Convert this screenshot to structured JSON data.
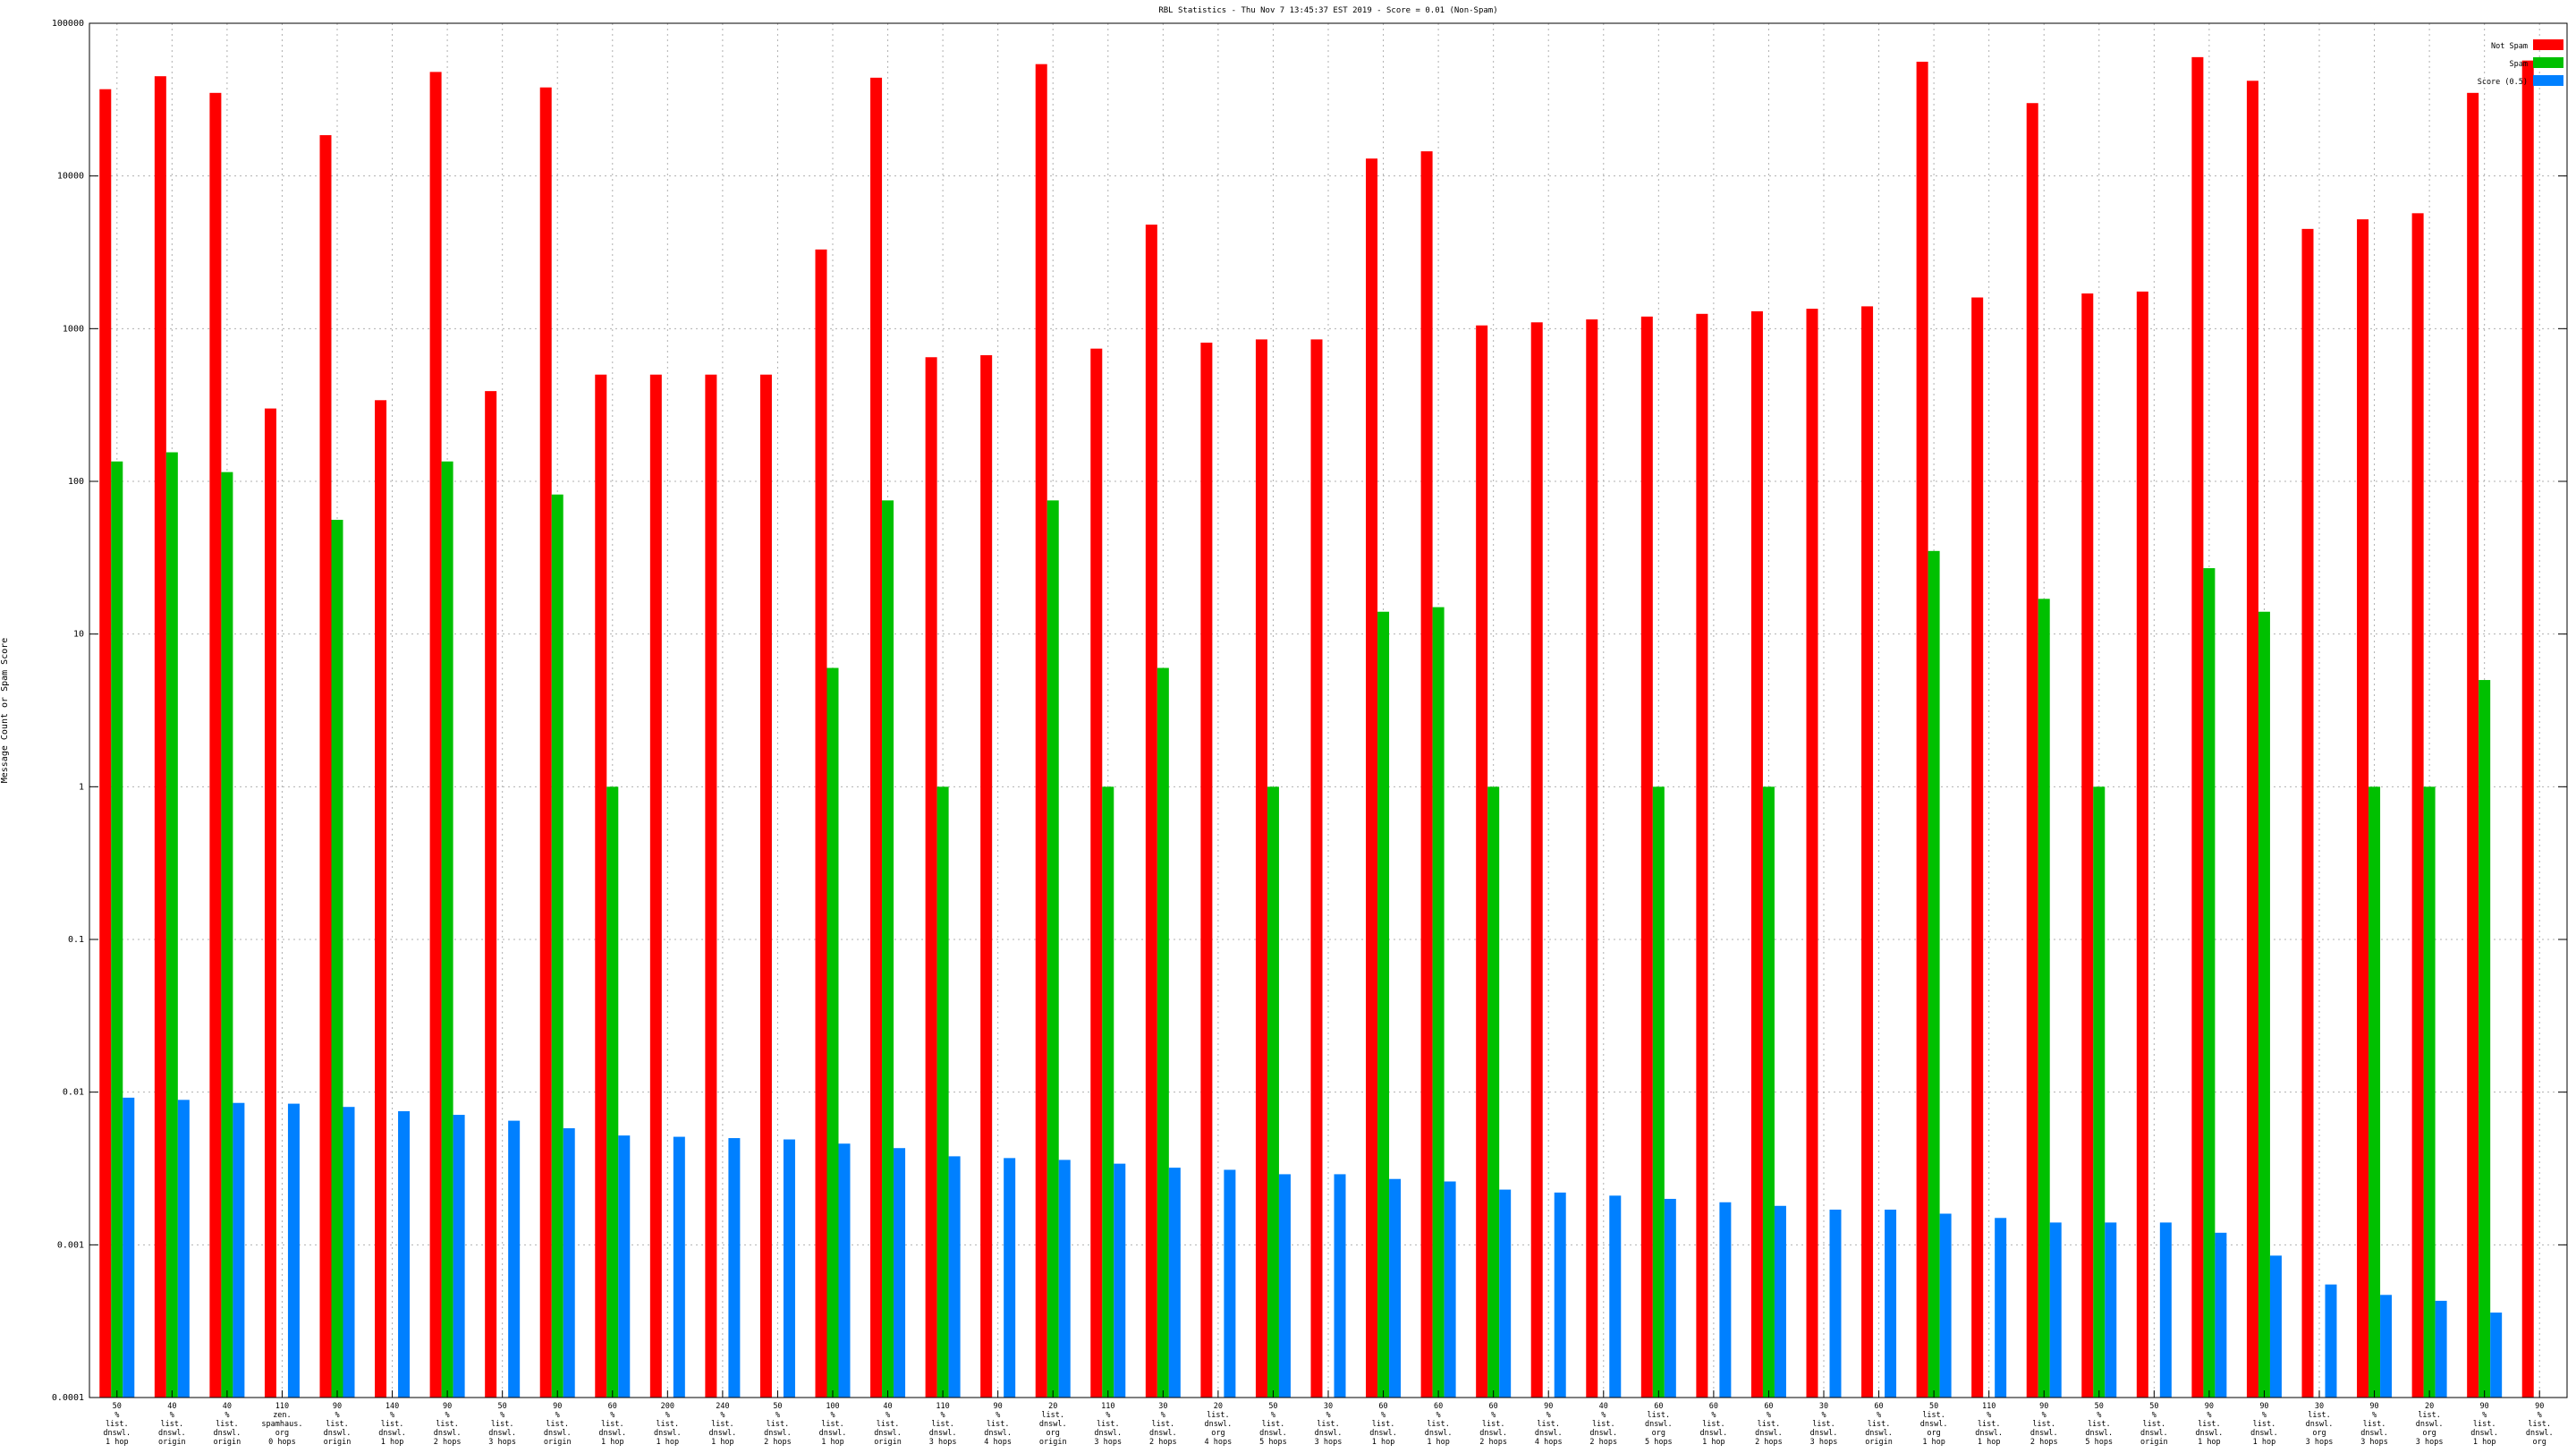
{
  "chart_data": {
    "type": "bar",
    "title": "RBL Statistics - Thu Nov  7 13:45:37 EST 2019 - Score = 0.01 (Non-Spam)",
    "ylabel": "Message Count or Spam Score",
    "xlabel": "",
    "yscale": "log",
    "ylim": [
      0.0001,
      100000
    ],
    "y_ticks": [
      "0.0001",
      "0.001",
      "0.01",
      "0.1",
      "1",
      "10",
      "100",
      "1000",
      "10000",
      "100000"
    ],
    "grid": true,
    "legend_position": "top-right",
    "categories": [
      [
        "50",
        "%",
        "list.",
        "dnswl.",
        "1 hop"
      ],
      [
        "40",
        "%",
        "list.",
        "dnswl.",
        "origin"
      ],
      [
        "40",
        "%",
        "list.",
        "dnswl.",
        "origin"
      ],
      [
        "110",
        "zen.",
        "spamhaus.",
        "org",
        "0 hops"
      ],
      [
        "90",
        "%",
        "list.",
        "dnswl.",
        "origin"
      ],
      [
        "140",
        "%",
        "list.",
        "dnswl.",
        "1 hop"
      ],
      [
        "90",
        "%",
        "list.",
        "dnswl.",
        "2 hops"
      ],
      [
        "50",
        "%",
        "list.",
        "dnswl.",
        "3 hops"
      ],
      [
        "90",
        "%",
        "list.",
        "dnswl.",
        "origin"
      ],
      [
        "60",
        "%",
        "list.",
        "dnswl.",
        "1 hop"
      ],
      [
        "200",
        "%",
        "list.",
        "dnswl.",
        "1 hop"
      ],
      [
        "240",
        "%",
        "list.",
        "dnswl.",
        "1 hop"
      ],
      [
        "50",
        "%",
        "list.",
        "dnswl.",
        "2 hops"
      ],
      [
        "100",
        "%",
        "list.",
        "dnswl.",
        "1 hop"
      ],
      [
        "40",
        "%",
        "list.",
        "dnswl.",
        "origin"
      ],
      [
        "110",
        "%",
        "list.",
        "dnswl.",
        "3 hops"
      ],
      [
        "90",
        "%",
        "list.",
        "dnswl.",
        "4 hops"
      ],
      [
        "20",
        "list.",
        "dnswl.",
        "org",
        "origin"
      ],
      [
        "110",
        "%",
        "list.",
        "dnswl.",
        "3 hops"
      ],
      [
        "30",
        "%",
        "list.",
        "dnswl.",
        "2 hops"
      ],
      [
        "20",
        "list.",
        "dnswl.",
        "org",
        "4 hops"
      ],
      [
        "50",
        "%",
        "list.",
        "dnswl.",
        "5 hops"
      ],
      [
        "30",
        "%",
        "list.",
        "dnswl.",
        "3 hops"
      ],
      [
        "60",
        "%",
        "list.",
        "dnswl.",
        "1 hop"
      ],
      [
        "60",
        "%",
        "list.",
        "dnswl.",
        "1 hop"
      ],
      [
        "60",
        "%",
        "list.",
        "dnswl.",
        "2 hops"
      ],
      [
        "90",
        "%",
        "list.",
        "dnswl.",
        "4 hops"
      ],
      [
        "40",
        "%",
        "list.",
        "dnswl.",
        "2 hops"
      ],
      [
        "60",
        "list.",
        "dnswl.",
        "org",
        "5 hops"
      ],
      [
        "60",
        "%",
        "list.",
        "dnswl.",
        "1 hop"
      ],
      [
        "60",
        "%",
        "list.",
        "dnswl.",
        "2 hops"
      ],
      [
        "30",
        "%",
        "list.",
        "dnswl.",
        "3 hops"
      ],
      [
        "60",
        "%",
        "list.",
        "dnswl.",
        "origin"
      ],
      [
        "50",
        "list.",
        "dnswl.",
        "org",
        "1 hop"
      ],
      [
        "110",
        "%",
        "list.",
        "dnswl.",
        "1 hop"
      ],
      [
        "90",
        "%",
        "list.",
        "dnswl.",
        "2 hops"
      ],
      [
        "50",
        "%",
        "list.",
        "dnswl.",
        "5 hops"
      ],
      [
        "50",
        "%",
        "list.",
        "dnswl.",
        "origin"
      ],
      [
        "90",
        "%",
        "list.",
        "dnswl.",
        "1 hop"
      ],
      [
        "90",
        "%",
        "list.",
        "dnswl.",
        "1 hop"
      ],
      [
        "30",
        "list.",
        "dnswl.",
        "org",
        "3 hops"
      ],
      [
        "90",
        "%",
        "list.",
        "dnswl.",
        "3 hops"
      ],
      [
        "20",
        "list.",
        "dnswl.",
        "org",
        "3 hops"
      ],
      [
        "90",
        "%",
        "list.",
        "dnswl.",
        "1 hop"
      ],
      [
        "90",
        "%",
        "list.",
        "dnswl.",
        "org"
      ]
    ],
    "series": [
      {
        "name": "Not Spam",
        "color": "#ff0000",
        "values": [
          37000,
          45000,
          35000,
          300,
          18500,
          340,
          48000,
          390,
          38000,
          500,
          500,
          500,
          500,
          3300,
          44000,
          650,
          670,
          54000,
          740,
          4800,
          810,
          850,
          850,
          13000,
          14500,
          1050,
          1100,
          1150,
          1200,
          1250,
          1300,
          1350,
          1400,
          56000,
          1600,
          30000,
          1700,
          1750,
          60000,
          42000,
          4500,
          5200,
          5700,
          35000,
          57000
        ]
      },
      {
        "name": "Spam",
        "color": "#00c000",
        "values": [
          135,
          155,
          115,
          null,
          56,
          null,
          135,
          null,
          82,
          1,
          null,
          null,
          null,
          6,
          75,
          1,
          null,
          75,
          1,
          6,
          null,
          1,
          null,
          14,
          15,
          1,
          null,
          null,
          1,
          null,
          1,
          null,
          null,
          35,
          null,
          17,
          1,
          null,
          27,
          14,
          null,
          1,
          1,
          5,
          null
        ]
      },
      {
        "name": "Score (0.5)",
        "color": "#0080ff",
        "values": [
          0.0092,
          0.0089,
          0.0085,
          0.0084,
          0.008,
          0.0075,
          0.0071,
          0.0065,
          0.0058,
          0.0052,
          0.0051,
          0.005,
          0.0049,
          0.0046,
          0.0043,
          0.0038,
          0.0037,
          0.0036,
          0.0034,
          0.0032,
          0.0031,
          0.0029,
          0.0029,
          0.0027,
          0.0026,
          0.0023,
          0.0022,
          0.0021,
          0.002,
          0.0019,
          0.0018,
          0.0017,
          0.0017,
          0.0016,
          0.0015,
          0.0014,
          0.0014,
          0.0014,
          0.0012,
          0.00085,
          0.00055,
          0.00047,
          0.00043,
          0.00036,
          null
        ]
      }
    ]
  }
}
